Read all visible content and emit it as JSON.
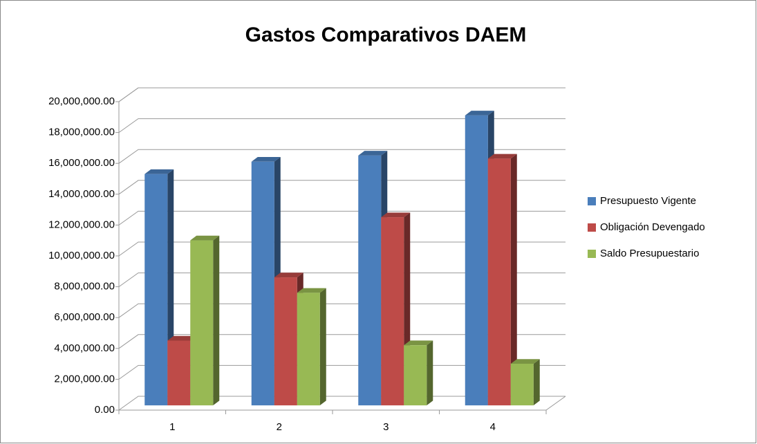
{
  "chart_data": {
    "type": "bar3d",
    "title": "Gastos Comparativos DAEM",
    "categories": [
      "1",
      "2",
      "3",
      "4"
    ],
    "series": [
      {
        "name": "Presupuesto Vigente",
        "color": "#4a7ebb",
        "values": [
          15000000,
          15800000,
          16200000,
          18800000
        ]
      },
      {
        "name": "Obligación Devengado",
        "color": "#be4b48",
        "values": [
          4200000,
          8300000,
          12200000,
          16000000
        ]
      },
      {
        "name": "Saldo Presupuestario",
        "color": "#98b954",
        "values": [
          10700000,
          7300000,
          3900000,
          2700000
        ]
      }
    ],
    "ylim": [
      0,
      20000000
    ],
    "yticks": [
      {
        "value": 0,
        "label": "0.00"
      },
      {
        "value": 2000000,
        "label": "2,000,000.00"
      },
      {
        "value": 4000000,
        "label": "4,000,000.00"
      },
      {
        "value": 6000000,
        "label": "6,000,000.00"
      },
      {
        "value": 8000000,
        "label": "8,000,000.00"
      },
      {
        "value": 10000000,
        "label": "10,000,000.00"
      },
      {
        "value": 12000000,
        "label": "12,000,000.00"
      },
      {
        "value": 14000000,
        "label": "14,000,000.00"
      },
      {
        "value": 16000000,
        "label": "16,000,000.00"
      },
      {
        "value": 18000000,
        "label": "18,000,000.00"
      },
      {
        "value": 20000000,
        "label": "20,000,000.00"
      }
    ],
    "grid": true,
    "legend": "right"
  }
}
